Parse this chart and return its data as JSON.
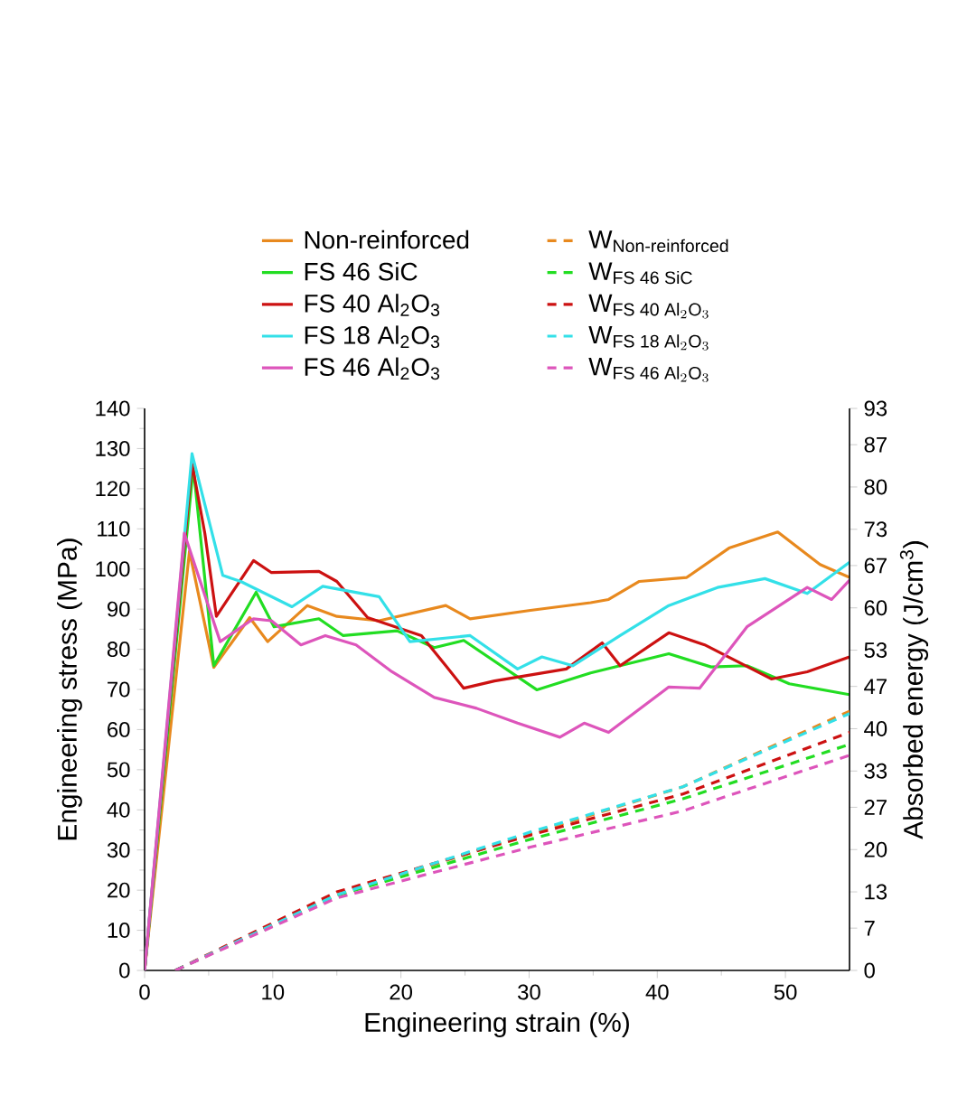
{
  "chart_data": {
    "type": "line",
    "xlabel": "Engineering strain (%)",
    "ylabel": "Engineering stress (MPa)",
    "y2label": "Absorbed energy (J/cm$^{3}$)",
    "xlim": [
      0,
      55
    ],
    "xticks": [
      0,
      10,
      20,
      30,
      40,
      50
    ],
    "ylim": [
      0,
      140
    ],
    "yticks": [
      0,
      10,
      20,
      30,
      40,
      50,
      60,
      70,
      80,
      90,
      100,
      110,
      120,
      130,
      140
    ],
    "y2lim": [
      0,
      93
    ],
    "y2ticks": [
      0,
      7,
      13,
      20,
      27,
      33,
      40,
      47,
      53,
      60,
      67,
      73,
      80,
      87,
      93
    ],
    "legend": "top",
    "grid": false,
    "marker": "none",
    "series": [
      {
        "name": "Non-reinforced",
        "color": "#e8891e",
        "line_style": "solid",
        "x": [
          0,
          3.5,
          5.4,
          8.2,
          9.6,
          12.7,
          15,
          18.3,
          23.5,
          25.4,
          30.1,
          34.8,
          36.2,
          38.6,
          42.3,
          45.6,
          49.4,
          52.7,
          55
        ],
        "values": [
          0,
          104.4,
          75.5,
          87.9,
          81.9,
          90.9,
          88.2,
          87.1,
          90.9,
          87.6,
          89.7,
          91.6,
          92.4,
          96.9,
          97.9,
          105.2,
          109.2,
          101.1,
          97.9
        ]
      },
      {
        "name": "\\text{W}_{\\text{Non-reinforced}}",
        "color": "#e8891e",
        "line_style": "dashed",
        "axis": "y2",
        "x": [
          2.4,
          15,
          30.1,
          42,
          55
        ],
        "values": [
          0,
          12.5,
          22.6,
          30.4,
          42.9
        ]
      },
      {
        "name": "FS 46 SiC",
        "color": "#22dd22",
        "line_style": "solid",
        "x": [
          0,
          3.8,
          5.4,
          8.7,
          10.1,
          13.6,
          15.5,
          19.7,
          22.6,
          24.9,
          30.6,
          34.8,
          40.9,
          44.2,
          47,
          50.3,
          55
        ],
        "values": [
          0,
          125.4,
          75.9,
          94.2,
          85.6,
          87.6,
          83.4,
          84.6,
          80.4,
          82.2,
          69.9,
          74.1,
          78.9,
          75.6,
          75.9,
          71.4,
          68.7
        ]
      },
      {
        "name": "\\text{W}_{\\text{FS 46 SiC}}",
        "color": "#22dd22",
        "line_style": "dashed",
        "axis": "y2",
        "x": [
          2.4,
          15,
          30.1,
          42,
          55
        ],
        "values": [
          0,
          12.4,
          21.7,
          28.4,
          37.4
        ]
      },
      {
        "name": "FS 40 Al$_{2}$O$_{3}$",
        "color": "#cc1111",
        "line_style": "solid",
        "x": [
          0,
          3.7,
          4.7,
          5.6,
          8.5,
          9.9,
          13.6,
          15,
          17.4,
          21.6,
          23.5,
          24.9,
          27.3,
          32.9,
          35.7,
          37.1,
          40.9,
          43.7,
          48.9,
          51.7,
          55
        ],
        "values": [
          0,
          126.2,
          108.9,
          88.2,
          102.1,
          99.1,
          99.4,
          96.9,
          87.9,
          83.4,
          75.9,
          70.3,
          72.1,
          75.1,
          81.6,
          75.9,
          84.1,
          81.1,
          72.6,
          74.4,
          78.1
        ]
      },
      {
        "name": "\\text{W}_{\\text{FS 40 Al}_{2}\\text{O}_{3}}",
        "color": "#cc1111",
        "line_style": "dashed",
        "axis": "y2",
        "x": [
          2.4,
          15,
          30.1,
          42,
          55
        ],
        "values": [
          0,
          13.0,
          22.4,
          29.2,
          39.4
        ]
      },
      {
        "name": "FS 18 Al$_{2}$O$_{3}$",
        "color": "#33e0e8",
        "line_style": "solid",
        "x": [
          0,
          3.7,
          6.1,
          7.5,
          11.5,
          13.9,
          18.3,
          20.7,
          25.4,
          29.1,
          31,
          33.4,
          37.1,
          40.9,
          44.7,
          48.4,
          51.7,
          55
        ],
        "values": [
          0,
          128.7,
          98.4,
          96.9,
          90.6,
          95.7,
          93.1,
          81.9,
          83.4,
          75.1,
          78.1,
          75.9,
          83.4,
          90.9,
          95.4,
          97.6,
          93.9,
          101.7
        ]
      },
      {
        "name": "\\text{W}_{\\text{FS 18 Al}_{2}\\text{O}_{3}}",
        "color": "#33e0e8",
        "line_style": "dashed",
        "axis": "y2",
        "x": [
          2.4,
          15,
          30.1,
          42,
          55
        ],
        "values": [
          0,
          12.5,
          22.9,
          30.4,
          42.5
        ]
      },
      {
        "name": "FS 46 Al$_{2}$O$_{3}$",
        "color": "#dd55bb",
        "line_style": "solid",
        "x": [
          0,
          3.1,
          5.9,
          8.5,
          9.9,
          12.2,
          14.1,
          16.5,
          19.3,
          22.6,
          25.9,
          29.1,
          32.4,
          34.3,
          36.2,
          40.9,
          43.3,
          47,
          51.7,
          53.6,
          55
        ],
        "values": [
          0,
          108.9,
          81.9,
          87.6,
          87.1,
          81.1,
          83.4,
          81.1,
          74.4,
          68.0,
          65.3,
          61.6,
          58.1,
          61.6,
          59.3,
          70.6,
          70.3,
          85.6,
          95.4,
          92.4,
          97.2
        ]
      },
      {
        "name": "\\text{W}_{\\text{FS 46 Al}_{2}\\text{O}_{3}}",
        "color": "#dd55bb",
        "line_style": "dashed",
        "axis": "y2",
        "x": [
          2.4,
          15,
          30.1,
          42,
          55
        ],
        "values": [
          0,
          12.0,
          20.4,
          26.4,
          35.6
        ]
      }
    ]
  }
}
